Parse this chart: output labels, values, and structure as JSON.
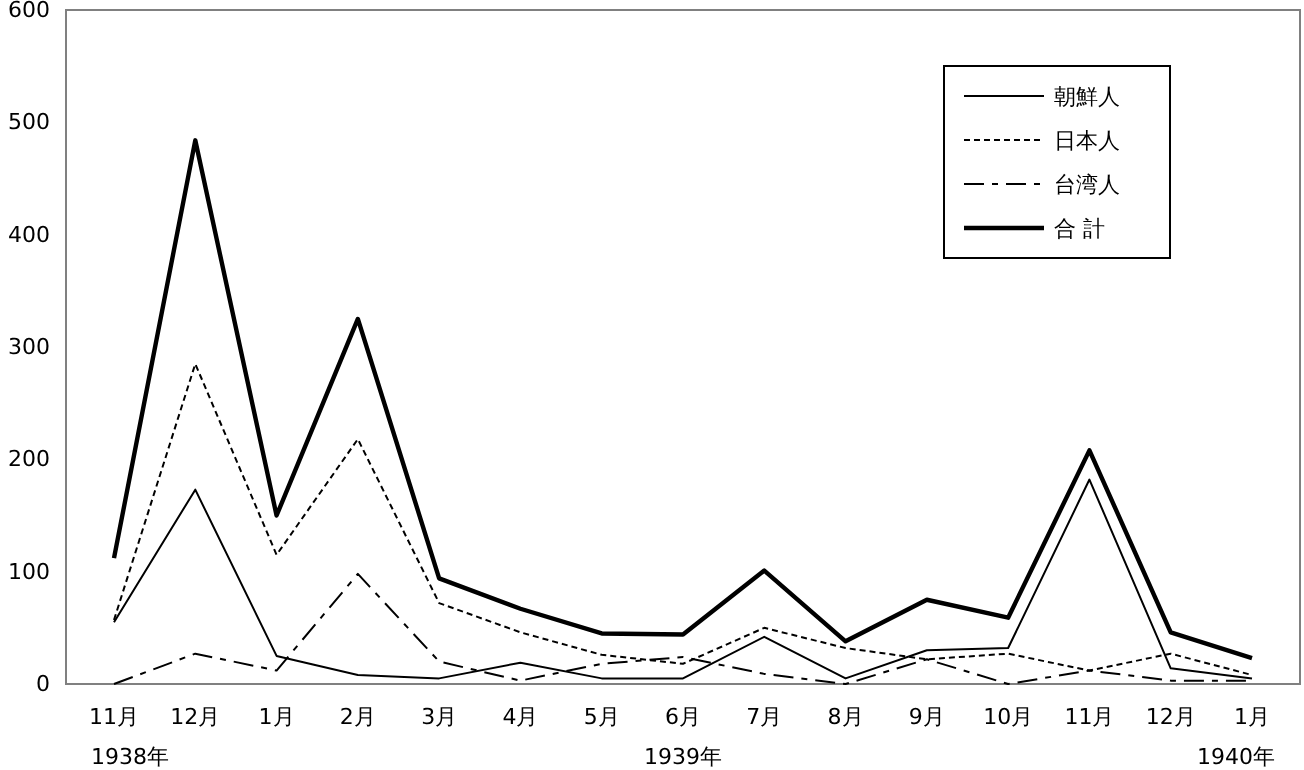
{
  "chart_data": {
    "type": "line",
    "categories": [
      "11月",
      "12月",
      "1月",
      "2月",
      "3月",
      "4月",
      "5月",
      "6月",
      "7月",
      "8月",
      "9月",
      "10月",
      "11月",
      "12月",
      "1月"
    ],
    "series": [
      {
        "name": "朝鮮人",
        "color": "#000000",
        "line_style": "solid",
        "values": [
          55,
          173,
          25,
          8,
          5,
          19,
          5,
          5,
          42,
          5,
          30,
          32,
          182,
          14,
          5
        ]
      },
      {
        "name": "日本人",
        "color": "#000000",
        "line_style": "dotted",
        "values": [
          57,
          285,
          115,
          218,
          72,
          46,
          26,
          18,
          50,
          32,
          22,
          27,
          12,
          27,
          8
        ]
      },
      {
        "name": "台湾人",
        "color": "#000000",
        "line_style": "dashed",
        "values": [
          0,
          27,
          12,
          98,
          20,
          3,
          18,
          24,
          9,
          0,
          22,
          0,
          12,
          3,
          3
        ]
      },
      {
        "name": "合 計",
        "color": "#000000",
        "line_style": "solid",
        "values": [
          112,
          484,
          150,
          325,
          94,
          67,
          45,
          44,
          101,
          38,
          75,
          59,
          208,
          46,
          23
        ]
      }
    ],
    "ylim": [
      0,
      600
    ],
    "yticks": [
      0,
      100,
      200,
      300,
      400,
      500,
      600
    ],
    "grid": false,
    "legend": "top right",
    "marker": "none",
    "annotations": [
      "1938年",
      "1939年",
      "1940年"
    ]
  }
}
